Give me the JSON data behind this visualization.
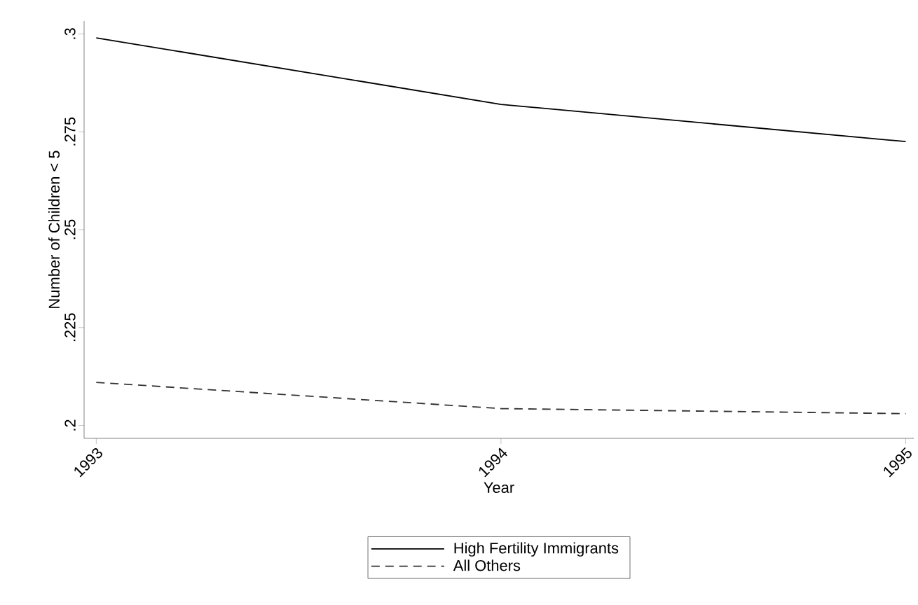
{
  "chart_data": {
    "type": "line",
    "xlabel": "Year",
    "ylabel": "Number of Children < 5",
    "x": [
      1993,
      1994,
      1995
    ],
    "series": [
      {
        "name": "High Fertility Immigrants",
        "color": "#000000",
        "line_style": "solid",
        "values": [
          0.299,
          0.282,
          0.2725
        ]
      },
      {
        "name": "All Others",
        "color": "#333333",
        "line_style": "dashed",
        "values": [
          0.211,
          0.2043,
          0.203
        ]
      }
    ],
    "xlim": [
      1992.97,
      1995.02
    ],
    "ylim": [
      0.1967,
      0.3033
    ],
    "xticks": [
      1993,
      1994,
      1995
    ],
    "yticks": [
      {
        "value": 0.2,
        "label": ".2"
      },
      {
        "value": 0.225,
        "label": ".225"
      },
      {
        "value": 0.25,
        "label": ".25"
      },
      {
        "value": 0.275,
        "label": ".275"
      },
      {
        "value": 0.3,
        "label": ".3"
      }
    ],
    "grid": false,
    "legend": "bottom"
  }
}
